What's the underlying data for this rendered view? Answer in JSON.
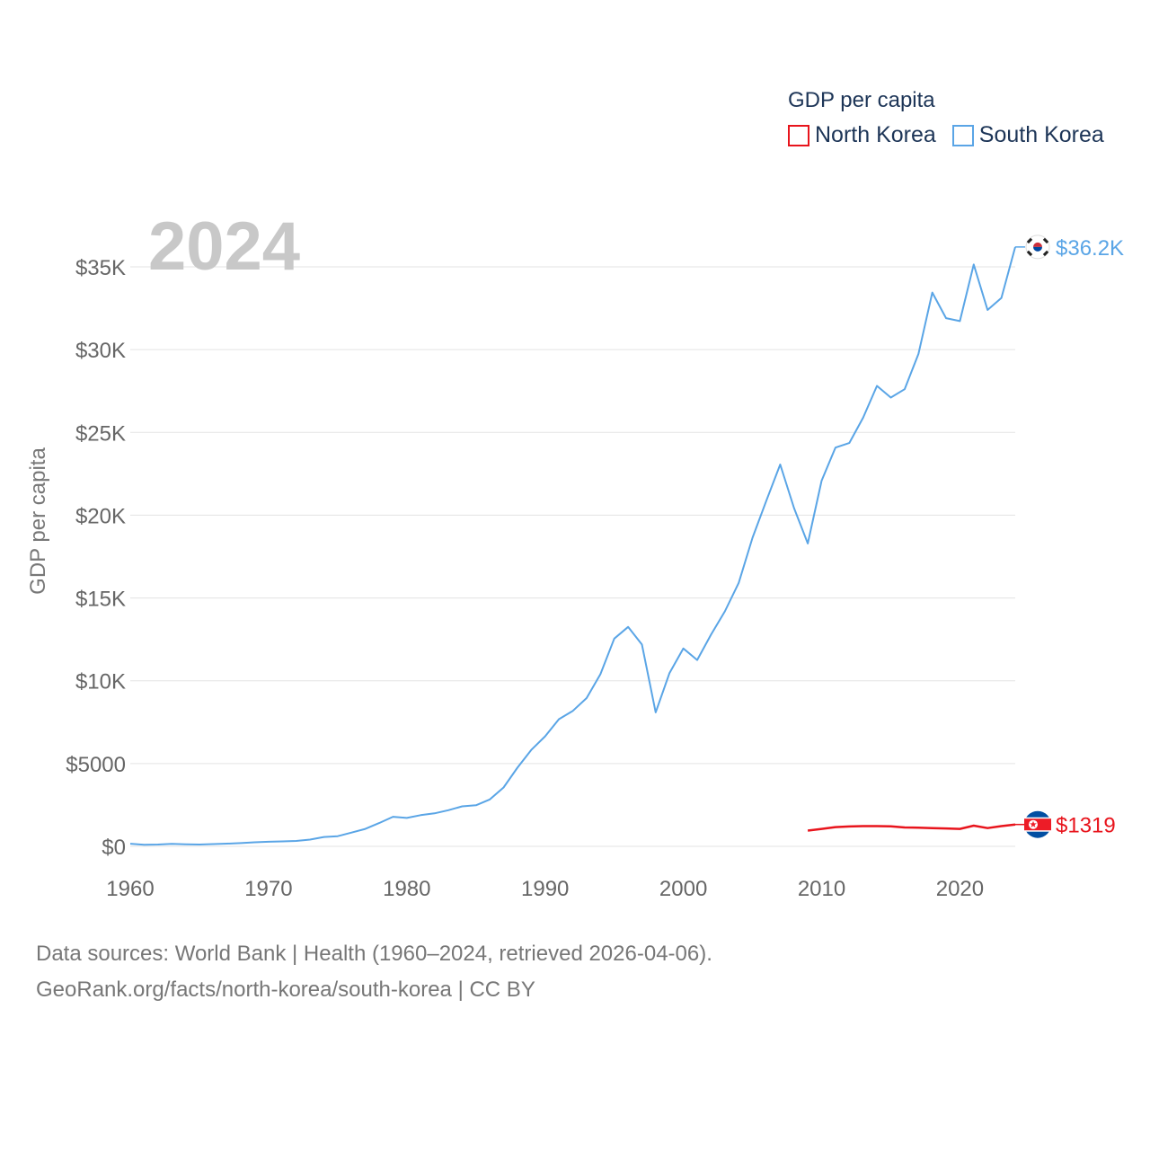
{
  "legend": {
    "title": "GDP per capita",
    "items": [
      {
        "label": "North Korea",
        "color": "#e8141c"
      },
      {
        "label": "South Korea",
        "color": "#5aa5e6"
      }
    ]
  },
  "footer": {
    "line1": "Data sources: World Bank | Health (1960–2024, retrieved 2026-04-06).",
    "line2": "GeoRank.org/facts/north-korea/south-korea | CC BY"
  },
  "chart_data": {
    "type": "line",
    "year_label": "2024",
    "ylabel": "GDP per capita",
    "xlabel": "",
    "xlim": [
      1960,
      2024
    ],
    "ylim": [
      0,
      37000
    ],
    "x_ticks": [
      1960,
      1970,
      1980,
      1990,
      2000,
      2010,
      2020
    ],
    "x_tick_labels": [
      "1960",
      "1970",
      "1980",
      "1990",
      "2000",
      "2010",
      "2020"
    ],
    "y_ticks": [
      0,
      5000,
      10000,
      15000,
      20000,
      25000,
      30000,
      35000
    ],
    "y_tick_labels": [
      "$0",
      "$5000",
      "$10K",
      "$15K",
      "$20K",
      "$25K",
      "$30K",
      "$35K"
    ],
    "grid": true,
    "series": [
      {
        "name": "South Korea",
        "color": "#5aa5e6",
        "end_label": "$36.2K",
        "flag": "south-korea",
        "x": [
          1960,
          1961,
          1962,
          1963,
          1964,
          1965,
          1966,
          1967,
          1968,
          1969,
          1970,
          1971,
          1972,
          1973,
          1974,
          1975,
          1976,
          1977,
          1978,
          1979,
          1980,
          1981,
          1982,
          1983,
          1984,
          1985,
          1986,
          1987,
          1988,
          1989,
          1990,
          1991,
          1992,
          1993,
          1994,
          1995,
          1996,
          1997,
          1998,
          1999,
          2000,
          2001,
          2002,
          2003,
          2004,
          2005,
          2006,
          2007,
          2008,
          2009,
          2010,
          2011,
          2012,
          2013,
          2014,
          2015,
          2016,
          2017,
          2018,
          2019,
          2020,
          2021,
          2022,
          2023,
          2024
        ],
        "values": [
          158,
          94,
          106,
          146,
          124,
          108,
          133,
          161,
          198,
          243,
          279,
          301,
          323,
          406,
          563,
          615,
          829,
          1055,
          1406,
          1784,
          1715,
          1883,
          1994,
          2181,
          2417,
          2482,
          2834,
          3554,
          4749,
          5822,
          6642,
          7681,
          8177,
          8955,
          10396,
          12546,
          13253,
          12189,
          8090,
          10469,
          11948,
          11253,
          12782,
          14191,
          15908,
          18640,
          20880,
          23061,
          20431,
          18292,
          22087,
          24080,
          24359,
          25890,
          27811,
          27105,
          27608,
          29743,
          33447,
          31902,
          31721,
          35142,
          32395,
          33121,
          36200
        ]
      },
      {
        "name": "North Korea",
        "color": "#e8141c",
        "end_label": "$1319",
        "flag": "north-korea",
        "x": [
          2009,
          2010,
          2011,
          2012,
          2013,
          2014,
          2015,
          2016,
          2017,
          2018,
          2019,
          2020,
          2021,
          2022,
          2023,
          2024
        ],
        "values": [
          950,
          1050,
          1160,
          1200,
          1220,
          1220,
          1210,
          1140,
          1130,
          1100,
          1080,
          1050,
          1250,
          1100,
          1220,
          1319
        ]
      }
    ]
  }
}
